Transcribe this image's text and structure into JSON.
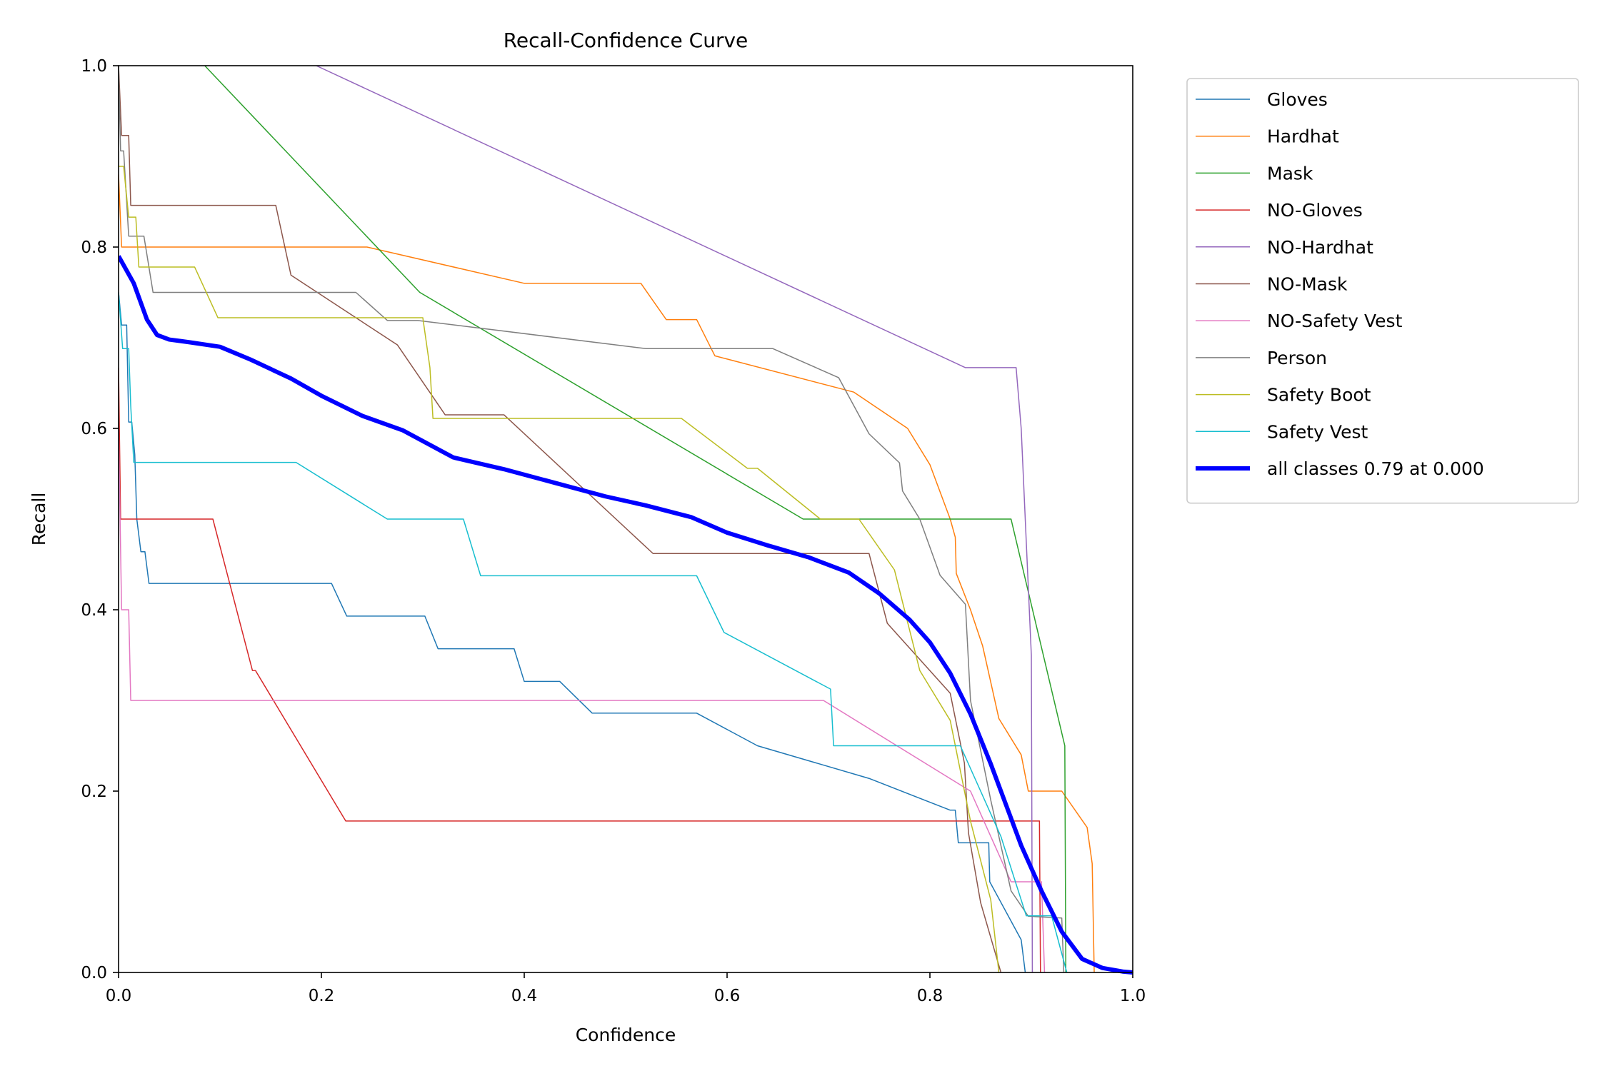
{
  "chart_data": {
    "type": "line",
    "title": "Recall-Confidence Curve",
    "xlabel": "Confidence",
    "ylabel": "Recall",
    "xlim": [
      0,
      1
    ],
    "ylim": [
      0,
      1
    ],
    "xticks": [
      "0.0",
      "0.2",
      "0.4",
      "0.6",
      "0.8",
      "1.0"
    ],
    "yticks": [
      "0.0",
      "0.2",
      "0.4",
      "0.6",
      "0.8",
      "1.0"
    ],
    "grid": false,
    "legend_position": "outside-top-right",
    "series": [
      {
        "name": "Gloves",
        "color": "#1f77b4",
        "width": 1.5,
        "points": [
          [
            0,
            0.75
          ],
          [
            0.003,
            0.714
          ],
          [
            0.008,
            0.714
          ],
          [
            0.01,
            0.607
          ],
          [
            0.013,
            0.607
          ],
          [
            0.016,
            0.571
          ],
          [
            0.018,
            0.5
          ],
          [
            0.022,
            0.464
          ],
          [
            0.026,
            0.464
          ],
          [
            0.03,
            0.429
          ],
          [
            0.21,
            0.429
          ],
          [
            0.225,
            0.393
          ],
          [
            0.302,
            0.393
          ],
          [
            0.315,
            0.357
          ],
          [
            0.39,
            0.357
          ],
          [
            0.4,
            0.321
          ],
          [
            0.435,
            0.321
          ],
          [
            0.467,
            0.286
          ],
          [
            0.57,
            0.286
          ],
          [
            0.63,
            0.25
          ],
          [
            0.74,
            0.214
          ],
          [
            0.82,
            0.179
          ],
          [
            0.825,
            0.179
          ],
          [
            0.828,
            0.143
          ],
          [
            0.858,
            0.143
          ],
          [
            0.859,
            0.1
          ],
          [
            0.89,
            0.036
          ],
          [
            0.894,
            0
          ]
        ]
      },
      {
        "name": "Hardhat",
        "color": "#ff7f0e",
        "width": 1.5,
        "points": [
          [
            0,
            0.88
          ],
          [
            0.003,
            0.8
          ],
          [
            0.245,
            0.8
          ],
          [
            0.4,
            0.76
          ],
          [
            0.515,
            0.76
          ],
          [
            0.54,
            0.72
          ],
          [
            0.57,
            0.72
          ],
          [
            0.588,
            0.68
          ],
          [
            0.725,
            0.64
          ],
          [
            0.778,
            0.6
          ],
          [
            0.8,
            0.56
          ],
          [
            0.82,
            0.5
          ],
          [
            0.825,
            0.48
          ],
          [
            0.826,
            0.44
          ],
          [
            0.84,
            0.4
          ],
          [
            0.852,
            0.36
          ],
          [
            0.86,
            0.32
          ],
          [
            0.868,
            0.28
          ],
          [
            0.89,
            0.24
          ],
          [
            0.897,
            0.2
          ],
          [
            0.93,
            0.2
          ],
          [
            0.955,
            0.16
          ],
          [
            0.96,
            0.12
          ],
          [
            0.962,
            0
          ]
        ]
      },
      {
        "name": "Mask",
        "color": "#2ca02c",
        "width": 1.5,
        "points": [
          [
            0.085,
            1
          ],
          [
            0.297,
            0.75
          ],
          [
            0.675,
            0.5
          ],
          [
            0.88,
            0.5
          ],
          [
            0.933,
            0.25
          ],
          [
            0.934,
            0
          ]
        ]
      },
      {
        "name": "NO-Gloves",
        "color": "#d62728",
        "width": 1.5,
        "points": [
          [
            0,
            0.667
          ],
          [
            0.002,
            0.5
          ],
          [
            0.093,
            0.5
          ],
          [
            0.132,
            0.333
          ],
          [
            0.135,
            0.333
          ],
          [
            0.224,
            0.167
          ],
          [
            0.908,
            0.167
          ],
          [
            0.909,
            0
          ]
        ]
      },
      {
        "name": "NO-Hardhat",
        "color": "#9467bd",
        "width": 1.5,
        "points": [
          [
            0.195,
            1
          ],
          [
            0.835,
            0.667
          ],
          [
            0.885,
            0.667
          ],
          [
            0.89,
            0.6
          ],
          [
            0.9,
            0.35
          ],
          [
            0.901,
            0
          ]
        ]
      },
      {
        "name": "NO-Mask",
        "color": "#8c564b",
        "width": 1.5,
        "points": [
          [
            0,
            1
          ],
          [
            0.003,
            0.923
          ],
          [
            0.01,
            0.923
          ],
          [
            0.012,
            0.846
          ],
          [
            0.155,
            0.846
          ],
          [
            0.17,
            0.769
          ],
          [
            0.275,
            0.692
          ],
          [
            0.322,
            0.615
          ],
          [
            0.38,
            0.615
          ],
          [
            0.527,
            0.462
          ],
          [
            0.74,
            0.462
          ],
          [
            0.758,
            0.385
          ],
          [
            0.82,
            0.308
          ],
          [
            0.834,
            0.231
          ],
          [
            0.838,
            0.154
          ],
          [
            0.85,
            0.077
          ],
          [
            0.87,
            0
          ]
        ]
      },
      {
        "name": "NO-Safety Vest",
        "color": "#e377c2",
        "width": 1.5,
        "points": [
          [
            0,
            0.6
          ],
          [
            0.003,
            0.4
          ],
          [
            0.01,
            0.4
          ],
          [
            0.012,
            0.3
          ],
          [
            0.695,
            0.3
          ],
          [
            0.84,
            0.2
          ],
          [
            0.88,
            0.1
          ],
          [
            0.91,
            0.1
          ],
          [
            0.913,
            0
          ]
        ]
      },
      {
        "name": "Person",
        "color": "#7f7f7f",
        "width": 1.5,
        "points": [
          [
            0,
            1
          ],
          [
            0.002,
            0.906
          ],
          [
            0.005,
            0.906
          ],
          [
            0.01,
            0.812
          ],
          [
            0.025,
            0.812
          ],
          [
            0.034,
            0.75
          ],
          [
            0.234,
            0.75
          ],
          [
            0.265,
            0.719
          ],
          [
            0.295,
            0.719
          ],
          [
            0.52,
            0.688
          ],
          [
            0.645,
            0.688
          ],
          [
            0.71,
            0.656
          ],
          [
            0.74,
            0.594
          ],
          [
            0.77,
            0.562
          ],
          [
            0.773,
            0.531
          ],
          [
            0.79,
            0.5
          ],
          [
            0.81,
            0.438
          ],
          [
            0.835,
            0.406
          ],
          [
            0.84,
            0.3
          ],
          [
            0.86,
            0.19
          ],
          [
            0.88,
            0.09
          ],
          [
            0.897,
            0.062
          ],
          [
            0.93,
            0.06
          ],
          [
            0.932,
            0
          ]
        ]
      },
      {
        "name": "Safety Boot",
        "color": "#bcbd22",
        "width": 1.5,
        "points": [
          [
            0,
            0.889
          ],
          [
            0.005,
            0.889
          ],
          [
            0.01,
            0.833
          ],
          [
            0.017,
            0.833
          ],
          [
            0.02,
            0.778
          ],
          [
            0.075,
            0.778
          ],
          [
            0.098,
            0.722
          ],
          [
            0.3,
            0.722
          ],
          [
            0.307,
            0.667
          ],
          [
            0.31,
            0.611
          ],
          [
            0.555,
            0.611
          ],
          [
            0.62,
            0.556
          ],
          [
            0.63,
            0.556
          ],
          [
            0.692,
            0.5
          ],
          [
            0.73,
            0.5
          ],
          [
            0.765,
            0.444
          ],
          [
            0.79,
            0.333
          ],
          [
            0.82,
            0.278
          ],
          [
            0.84,
            0.167
          ],
          [
            0.86,
            0.08
          ],
          [
            0.868,
            0
          ]
        ]
      },
      {
        "name": "Safety Vest",
        "color": "#17becf",
        "width": 1.5,
        "points": [
          [
            0,
            0.75
          ],
          [
            0.004,
            0.688
          ],
          [
            0.01,
            0.688
          ],
          [
            0.012,
            0.625
          ],
          [
            0.015,
            0.5625
          ],
          [
            0.175,
            0.5625
          ],
          [
            0.265,
            0.5
          ],
          [
            0.34,
            0.5
          ],
          [
            0.357,
            0.4375
          ],
          [
            0.57,
            0.4375
          ],
          [
            0.597,
            0.375
          ],
          [
            0.702,
            0.3125
          ],
          [
            0.705,
            0.25
          ],
          [
            0.83,
            0.25
          ],
          [
            0.87,
            0.15
          ],
          [
            0.895,
            0.0625
          ],
          [
            0.92,
            0.0625
          ],
          [
            0.935,
            0
          ]
        ]
      },
      {
        "name": "all classes 0.79 at 0.000",
        "color": "#0000ff",
        "width": 6,
        "points": [
          [
            0,
            0.79
          ],
          [
            0.015,
            0.76
          ],
          [
            0.028,
            0.72
          ],
          [
            0.038,
            0.703
          ],
          [
            0.05,
            0.698
          ],
          [
            0.07,
            0.695
          ],
          [
            0.1,
            0.69
          ],
          [
            0.13,
            0.676
          ],
          [
            0.17,
            0.655
          ],
          [
            0.2,
            0.636
          ],
          [
            0.24,
            0.614
          ],
          [
            0.28,
            0.598
          ],
          [
            0.3,
            0.586
          ],
          [
            0.33,
            0.568
          ],
          [
            0.38,
            0.555
          ],
          [
            0.43,
            0.54
          ],
          [
            0.48,
            0.525
          ],
          [
            0.52,
            0.515
          ],
          [
            0.565,
            0.502
          ],
          [
            0.6,
            0.485
          ],
          [
            0.64,
            0.471
          ],
          [
            0.68,
            0.458
          ],
          [
            0.72,
            0.441
          ],
          [
            0.75,
            0.418
          ],
          [
            0.78,
            0.389
          ],
          [
            0.8,
            0.364
          ],
          [
            0.82,
            0.33
          ],
          [
            0.84,
            0.285
          ],
          [
            0.86,
            0.23
          ],
          [
            0.87,
            0.2
          ],
          [
            0.89,
            0.14
          ],
          [
            0.91,
            0.09
          ],
          [
            0.93,
            0.045
          ],
          [
            0.95,
            0.015
          ],
          [
            0.97,
            0.005
          ],
          [
            0.99,
            0.001
          ],
          [
            1,
            0
          ]
        ]
      }
    ]
  }
}
